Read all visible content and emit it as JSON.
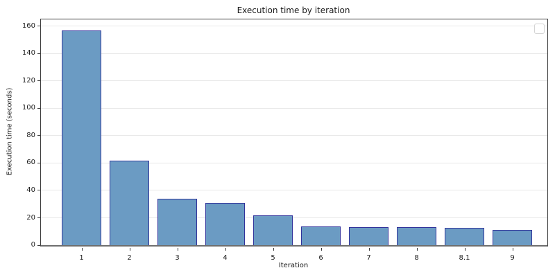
{
  "chart_data": {
    "type": "bar",
    "title": "Execution time by iteration",
    "xlabel": "Iteration",
    "ylabel": "Execution time (seconds)",
    "categories": [
      "1",
      "2",
      "3",
      "4",
      "5",
      "6",
      "7",
      "8",
      "8.1",
      "9"
    ],
    "values": [
      157,
      62,
      34,
      31,
      22,
      13.5,
      13,
      13,
      12.5,
      11
    ],
    "yticks": [
      0,
      20,
      40,
      60,
      80,
      100,
      120,
      140,
      160
    ],
    "ylim": [
      0,
      165
    ],
    "grid": "horizontal-only",
    "legend": "empty-box-top-right",
    "colors": {
      "bar_fill": "#6b9bc3",
      "bar_edge": "#31339b",
      "grid": "#e8e8e8",
      "spine": "#3c3c3c",
      "baseline": "#6e6e6e",
      "text": "#1a1a1a",
      "background": "#ffffff"
    }
  }
}
